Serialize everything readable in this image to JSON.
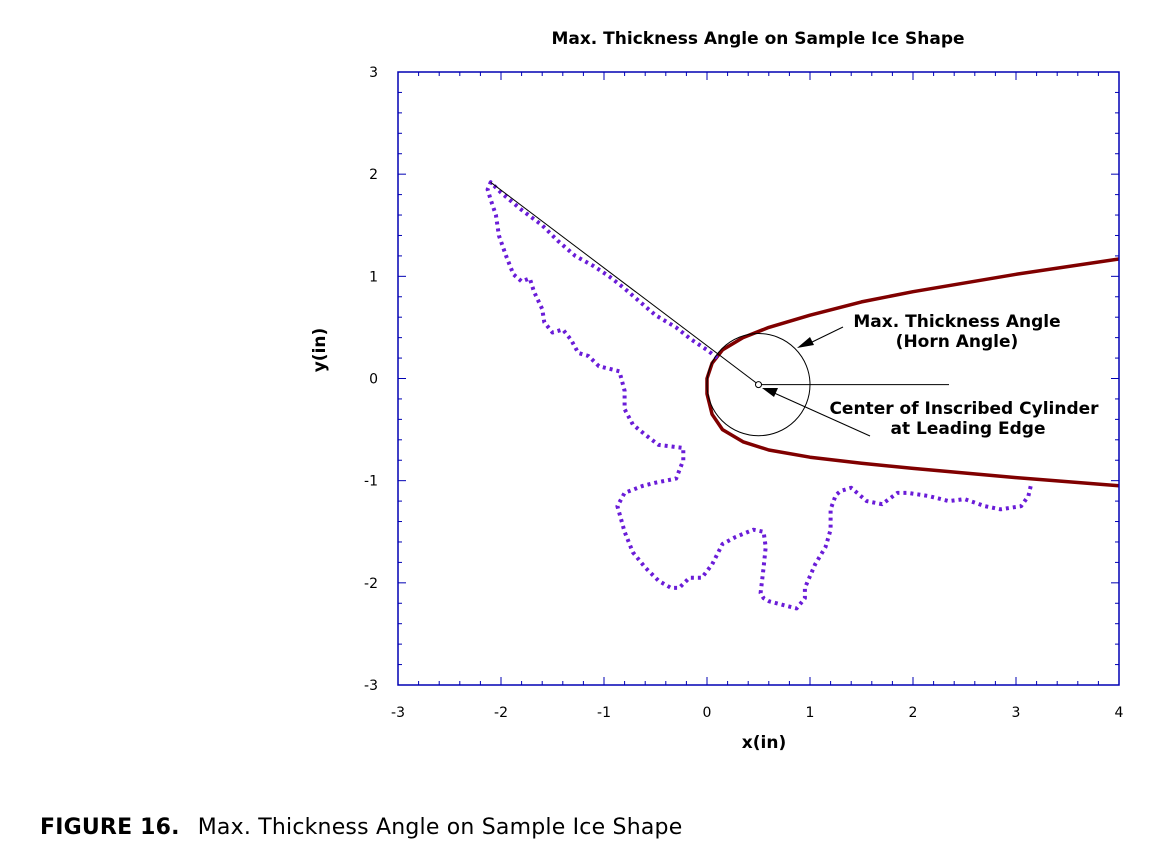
{
  "chart_data": {
    "type": "line",
    "title": "Max. Thickness Angle on Sample Ice Shape",
    "xlabel": "x(in)",
    "ylabel": "y(in)",
    "xlim": [
      -3,
      4
    ],
    "ylim": [
      -3,
      3
    ],
    "xticks": [
      -3,
      -2,
      -1,
      0,
      1,
      2,
      3,
      4
    ],
    "yticks": [
      -3,
      -2,
      -1,
      0,
      1,
      2,
      3
    ],
    "grid": false,
    "axis_color": "#0000b4",
    "series": [
      {
        "name": "Clean airfoil leading edge",
        "style": "solid",
        "color": "#800000",
        "x": [
          4.0,
          3.0,
          2.0,
          1.5,
          1.0,
          0.6,
          0.35,
          0.15,
          0.05,
          0.0,
          0.0,
          0.05,
          0.15,
          0.35,
          0.6,
          1.0,
          1.5,
          2.0,
          3.0,
          4.0
        ],
        "y": [
          1.17,
          1.02,
          0.85,
          0.75,
          0.62,
          0.5,
          0.4,
          0.28,
          0.15,
          0.0,
          -0.15,
          -0.35,
          -0.5,
          -0.62,
          -0.7,
          -0.77,
          -0.83,
          -0.88,
          -0.97,
          -1.05
        ]
      },
      {
        "name": "Ice shape",
        "style": "dotted",
        "color": "#6a1cd8",
        "x": [
          0.1,
          0.0,
          -0.15,
          -0.3,
          -0.5,
          -0.65,
          -0.8,
          -0.95,
          -1.1,
          -1.28,
          -1.45,
          -1.6,
          -1.8,
          -2.0,
          -2.1,
          -2.13,
          -2.1,
          -2.05,
          -2.02,
          -1.95,
          -1.88,
          -1.8,
          -1.72,
          -1.68,
          -1.6,
          -1.58,
          -1.5,
          -1.4,
          -1.32,
          -1.25,
          -1.15,
          -1.05,
          -0.85,
          -0.8,
          -0.8,
          -0.72,
          -0.6,
          -0.47,
          -0.23,
          -0.23,
          -0.3,
          -0.5,
          -0.62,
          -0.8,
          -0.87,
          -0.8,
          -0.72,
          -0.6,
          -0.47,
          -0.35,
          -0.27,
          -0.17,
          -0.05,
          0.05,
          0.15,
          0.28,
          0.45,
          0.55,
          0.57,
          0.55,
          0.52,
          0.55,
          0.6,
          0.75,
          0.87,
          0.95,
          0.95,
          1.05,
          1.15,
          1.2,
          1.2,
          1.25,
          1.3,
          1.4,
          1.55,
          1.7,
          1.85,
          1.95,
          2.15,
          2.35,
          2.5,
          2.7,
          2.85,
          3.05,
          3.12,
          3.15
        ],
        "y": [
          0.2,
          0.28,
          0.38,
          0.5,
          0.62,
          0.75,
          0.88,
          1.0,
          1.1,
          1.2,
          1.35,
          1.5,
          1.65,
          1.82,
          1.92,
          1.85,
          1.75,
          1.6,
          1.4,
          1.2,
          1.02,
          0.95,
          0.98,
          0.85,
          0.68,
          0.55,
          0.45,
          0.48,
          0.38,
          0.25,
          0.22,
          0.12,
          0.07,
          -0.12,
          -0.3,
          -0.45,
          -0.55,
          -0.65,
          -0.68,
          -0.8,
          -0.98,
          -1.02,
          -1.05,
          -1.12,
          -1.25,
          -1.5,
          -1.7,
          -1.85,
          -1.98,
          -2.05,
          -2.05,
          -1.95,
          -1.95,
          -1.82,
          -1.62,
          -1.55,
          -1.48,
          -1.5,
          -1.65,
          -1.85,
          -2.1,
          -2.15,
          -2.18,
          -2.22,
          -2.25,
          -2.15,
          -2.05,
          -1.82,
          -1.65,
          -1.48,
          -1.28,
          -1.14,
          -1.1,
          -1.07,
          -1.2,
          -1.23,
          -1.12,
          -1.12,
          -1.15,
          -1.2,
          -1.18,
          -1.25,
          -1.28,
          -1.25,
          -1.15,
          -1.02
        ]
      },
      {
        "name": "Max thickness (horn) line",
        "style": "solid-thin",
        "color": "#000000",
        "x": [
          -2.1,
          0.5
        ],
        "y": [
          1.92,
          -0.06
        ]
      },
      {
        "name": "Horizontal reference line",
        "style": "solid-thin",
        "color": "#000000",
        "x": [
          0.5,
          2.35
        ],
        "y": [
          -0.06,
          -0.06
        ]
      },
      {
        "name": "Inscribed cylinder",
        "style": "circle",
        "color": "#000000",
        "center": [
          0.5,
          -0.06
        ],
        "radius": 0.5
      }
    ],
    "annotations": [
      {
        "text": "Max. Thickness Angle",
        "x": 2.55,
        "y": 0.57
      },
      {
        "text": "(Horn Angle)",
        "x": 2.55,
        "y": 0.37
      },
      {
        "text": "Center of Inscribed Cylinder",
        "x": 2.55,
        "y": -0.28
      },
      {
        "text": "at Leading Edge",
        "x": 2.55,
        "y": -0.48
      }
    ]
  },
  "caption": {
    "number": "FIGURE 16.",
    "text": "Max. Thickness Angle on Sample Ice Shape"
  }
}
